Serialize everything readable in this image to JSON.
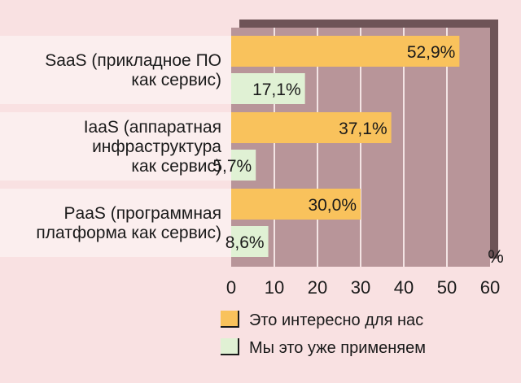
{
  "chart_data": {
    "type": "bar",
    "orientation": "horizontal",
    "categories": [
      [
        "SaaS (прикладное ПО",
        "как сервис)"
      ],
      [
        "IaaS (аппаратная",
        "инфраструктура",
        "как сервис)"
      ],
      [
        "PaaS (программная",
        "платформа как сервис)"
      ]
    ],
    "series": [
      {
        "name": "Это интересно для нас",
        "values": [
          52.9,
          37.1,
          30.0
        ],
        "labels": [
          "52,9%",
          "37,1%",
          "30,0%"
        ],
        "color": "#f9c25c"
      },
      {
        "name": "Мы это уже применяем",
        "values": [
          17.1,
          5.7,
          8.6
        ],
        "labels": [
          "17,1%",
          "5,7%",
          "8,6%"
        ],
        "color": "#e0f1d4"
      }
    ],
    "xlim": [
      0,
      60
    ],
    "xticks": [
      "0",
      "10",
      "20",
      "30",
      "40",
      "50",
      "60"
    ],
    "xunit": "%",
    "grid": true,
    "legend_position": "bottom",
    "colors": {
      "background": "#f9e1e2",
      "plot_area": "#b89599",
      "plot_shadow": "#6e5457",
      "row_band": "#fbeeee",
      "gridline": "#f3e4e4"
    }
  }
}
